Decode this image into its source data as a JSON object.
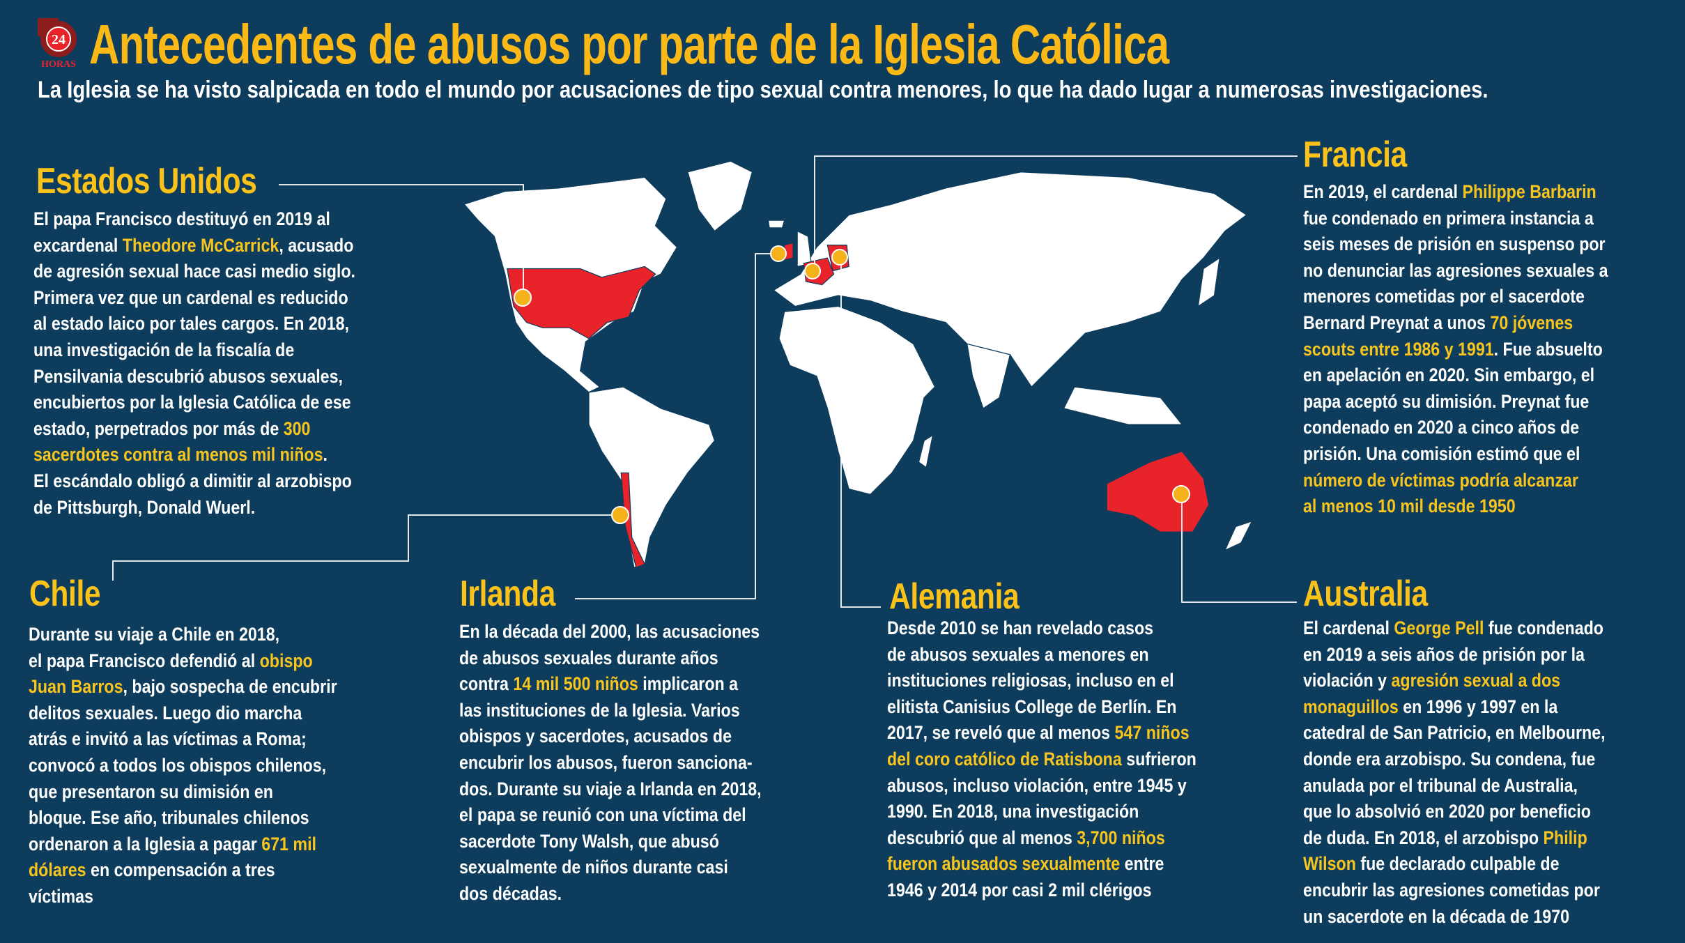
{
  "logo": {
    "number": "24",
    "name": "HORAS"
  },
  "header": {
    "title": "Antecedentes de abusos por parte de la Iglesia Católica",
    "subtitle": "La Iglesia se ha visto salpicada en todo el mundo por acusaciones de tipo sexual contra menores, lo que ha dado lugar a numerosas investigaciones."
  },
  "colors": {
    "background": "#0e3c5d",
    "title": "#fbb917",
    "highlight": "#f7c51e",
    "country": "#e8232a",
    "marker": "#f6b21b"
  },
  "sections": {
    "usa": {
      "heading": "Estados Unidos",
      "lines": [
        [
          {
            "t": "El papa Francisco destituyó en 2019 al"
          }
        ],
        [
          {
            "t": "excardenal "
          },
          {
            "t": "Theodore McCarrick",
            "hl": true
          },
          {
            "t": ", acusado"
          }
        ],
        [
          {
            "t": "de agresión sexual hace casi medio siglo."
          }
        ],
        [
          {
            "t": "Primera vez que un cardenal es reducido"
          }
        ],
        [
          {
            "t": "al estado laico por tales cargos. En 2018,"
          }
        ],
        [
          {
            "t": "una investigación de la fiscalía de"
          }
        ],
        [
          {
            "t": "Pensilvania descubrió abusos sexuales,"
          }
        ],
        [
          {
            "t": "encubiertos por la Iglesia Católica de ese"
          }
        ],
        [
          {
            "t": "estado, perpetrados por más de "
          },
          {
            "t": "300",
            "hl": true
          }
        ],
        [
          {
            "t": "sacerdotes contra al menos mil niños",
            "hl": true
          },
          {
            "t": "."
          }
        ],
        [
          {
            "t": "El escándalo obligó a dimitir al arzobispo"
          }
        ],
        [
          {
            "t": "de Pittsburgh, Donald Wuerl."
          }
        ]
      ]
    },
    "france": {
      "heading": "Francia",
      "lines": [
        [
          {
            "t": "En 2019, el cardenal "
          },
          {
            "t": "Philippe Barbarin",
            "hl": true
          }
        ],
        [
          {
            "t": "fue condenado en primera instancia a"
          }
        ],
        [
          {
            "t": "seis meses de prisión en suspenso por"
          }
        ],
        [
          {
            "t": "no denunciar las agresiones sexuales a"
          }
        ],
        [
          {
            "t": "menores cometidas por el sacerdote"
          }
        ],
        [
          {
            "t": "Bernard Preynat a unos "
          },
          {
            "t": "70 jóvenes",
            "hl": true
          }
        ],
        [
          {
            "t": "scouts entre 1986 y 1991",
            "hl": true
          },
          {
            "t": ". Fue absuelto"
          }
        ],
        [
          {
            "t": "en apelación en 2020. Sin embargo, el"
          }
        ],
        [
          {
            "t": "papa aceptó su dimisión. Preynat fue"
          }
        ],
        [
          {
            "t": "condenado en 2020 a cinco años de"
          }
        ],
        [
          {
            "t": "prisión. Una comisión estimó que el"
          }
        ],
        [
          {
            "t": "número de víctimas podría alcanzar",
            "hl": true
          }
        ],
        [
          {
            "t": "al menos 10 mil desde 1950",
            "hl": true
          }
        ]
      ]
    },
    "chile": {
      "heading": "Chile",
      "lines": [
        [
          {
            "t": "Durante su viaje a Chile en 2018,"
          }
        ],
        [
          {
            "t": "el papa Francisco defendió al "
          },
          {
            "t": "obispo",
            "hl": true
          }
        ],
        [
          {
            "t": "Juan Barros",
            "hl": true
          },
          {
            "t": ", bajo sospecha de encubrir"
          }
        ],
        [
          {
            "t": "delitos sexuales. Luego dio marcha"
          }
        ],
        [
          {
            "t": "atrás e invitó a las víctimas a Roma;"
          }
        ],
        [
          {
            "t": "convocó a todos los obispos chilenos,"
          }
        ],
        [
          {
            "t": "que presentaron su dimisión en"
          }
        ],
        [
          {
            "t": "bloque. Ese año, tribunales chilenos"
          }
        ],
        [
          {
            "t": "ordenaron a la Iglesia a pagar "
          },
          {
            "t": "671 mil",
            "hl": true
          }
        ],
        [
          {
            "t": "dólares",
            "hl": true
          },
          {
            "t": " en compensación a tres"
          }
        ],
        [
          {
            "t": "víctimas"
          }
        ]
      ]
    },
    "ireland": {
      "heading": "Irlanda",
      "lines": [
        [
          {
            "t": "En la década del 2000, las acusaciones"
          }
        ],
        [
          {
            "t": "de abusos sexuales durante años"
          }
        ],
        [
          {
            "t": "contra "
          },
          {
            "t": "14 mil 500 niños",
            "hl": true
          },
          {
            "t": " implicaron a"
          }
        ],
        [
          {
            "t": "las instituciones de la Iglesia. Varios"
          }
        ],
        [
          {
            "t": "obispos y sacerdotes, acusados de"
          }
        ],
        [
          {
            "t": "encubrir los abusos, fueron sanciona-"
          }
        ],
        [
          {
            "t": "dos. Durante su viaje a Irlanda en 2018,"
          }
        ],
        [
          {
            "t": "el papa se reunió con una víctima del"
          }
        ],
        [
          {
            "t": "sacerdote Tony Walsh, que abusó"
          }
        ],
        [
          {
            "t": "sexualmente de niños durante casi"
          }
        ],
        [
          {
            "t": "dos décadas."
          }
        ]
      ]
    },
    "germany": {
      "heading": "Alemania",
      "lines": [
        [
          {
            "t": "Desde 2010 se han revelado casos"
          }
        ],
        [
          {
            "t": "de abusos sexuales a menores en"
          }
        ],
        [
          {
            "t": "instituciones religiosas, incluso en el"
          }
        ],
        [
          {
            "t": "elitista Canisius College de Berlín. En"
          }
        ],
        [
          {
            "t": "2017, se reveló que al menos "
          },
          {
            "t": "547 niños",
            "hl": true
          }
        ],
        [
          {
            "t": "del coro católico de Ratisbona",
            "hl": true
          },
          {
            "t": " sufrieron"
          }
        ],
        [
          {
            "t": "abusos, incluso violación, entre 1945 y"
          }
        ],
        [
          {
            "t": "1990. En 2018, una investigación"
          }
        ],
        [
          {
            "t": "descubrió que al menos "
          },
          {
            "t": "3,700 niños",
            "hl": true
          }
        ],
        [
          {
            "t": "fueron abusados sexualmente",
            "hl": true
          },
          {
            "t": " entre"
          }
        ],
        [
          {
            "t": "1946 y 2014 por casi 2 mil clérigos"
          }
        ]
      ]
    },
    "australia": {
      "heading": "Australia",
      "lines": [
        [
          {
            "t": "El cardenal "
          },
          {
            "t": "George Pell",
            "hl": true
          },
          {
            "t": " fue condenado"
          }
        ],
        [
          {
            "t": "en 2019 a seis años de prisión por la"
          }
        ],
        [
          {
            "t": "violación y "
          },
          {
            "t": "agresión sexual a dos",
            "hl": true
          }
        ],
        [
          {
            "t": "monaguillos",
            "hl": true
          },
          {
            "t": " en 1996 y 1997 en la"
          }
        ],
        [
          {
            "t": "catedral de San Patricio, en Melbourne,"
          }
        ],
        [
          {
            "t": "donde era arzobispo. Su condena, fue"
          }
        ],
        [
          {
            "t": "anulada por el tribunal de Australia,"
          }
        ],
        [
          {
            "t": "que lo absolvió en 2020 por beneficio"
          }
        ],
        [
          {
            "t": "de duda. En  2018, el arzobispo "
          },
          {
            "t": "Philip",
            "hl": true
          }
        ],
        [
          {
            "t": "Wilson",
            "hl": true
          },
          {
            "t": " fue declarado culpable de"
          }
        ],
        [
          {
            "t": "encubrir las agresiones cometidas por"
          }
        ],
        [
          {
            "t": "un sacerdote en la década de 1970"
          }
        ]
      ]
    }
  }
}
